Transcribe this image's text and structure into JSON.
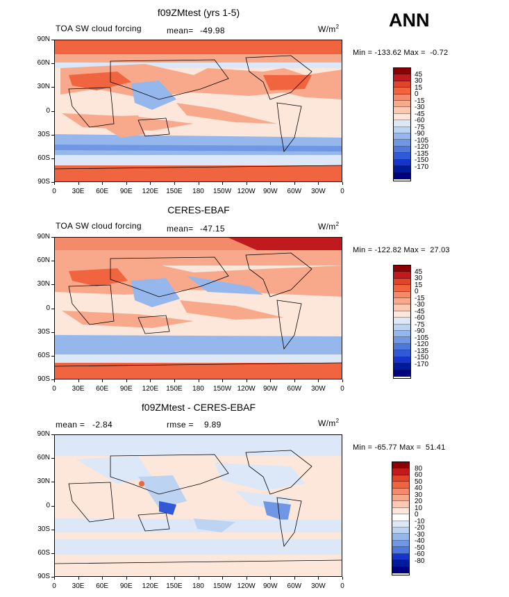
{
  "season": "ANN",
  "colorbar_colors_main": [
    "#8b0000",
    "#c0191e",
    "#e0452a",
    "#f06440",
    "#f58a6a",
    "#f8a98c",
    "#fbc9b4",
    "#fde6da",
    "#dce8f7",
    "#bcd3f2",
    "#95b7ec",
    "#6f97e3",
    "#4f78dc",
    "#3158d6",
    "#1535cc",
    "#001a9e",
    "#000080"
  ],
  "colorbar_colors_diff": [
    "#8b0000",
    "#c0191e",
    "#e0452a",
    "#f06440",
    "#f58a6a",
    "#f8a98c",
    "#fbc9b4",
    "#fde6da",
    "#ffffff",
    "#dce8f7",
    "#bcd3f2",
    "#95b7ec",
    "#6f97e3",
    "#4f78dc",
    "#1535cc",
    "#001a9e",
    "#000080"
  ],
  "lat_labels": [
    "90N",
    "60N",
    "30N",
    "0",
    "30S",
    "60S",
    "90S"
  ],
  "lon_labels": [
    "0",
    "30E",
    "60E",
    "90E",
    "120E",
    "150E",
    "180",
    "150W",
    "120W",
    "90W",
    "60W",
    "30W",
    "0"
  ],
  "panels": [
    {
      "title": "f09ZMtest (yrs 1-5)",
      "left_label": "TOA SW cloud forcing",
      "stat_label": "mean=",
      "stat_value": "-49.98",
      "units": "W/m",
      "units_exp": "2",
      "minmax": "Min = -133.62 Max =  -0.72",
      "colorbar_labels": [
        "45",
        "30",
        "15",
        "0",
        "-15",
        "-30",
        "-45",
        "-60",
        "-75",
        "-90",
        "-105",
        "-120",
        "-135",
        "-150",
        "-170"
      ]
    },
    {
      "title": "CERES-EBAF",
      "left_label": "TOA SW cloud forcing",
      "stat_label": "mean=",
      "stat_value": "-47.15",
      "units": "W/m",
      "units_exp": "2",
      "minmax": "Min = -122.82 Max =  27.03",
      "colorbar_labels": [
        "45",
        "30",
        "15",
        "0",
        "-15",
        "-30",
        "-45",
        "-60",
        "-75",
        "-90",
        "-105",
        "-120",
        "-135",
        "-150",
        "-170"
      ]
    },
    {
      "title": "f09ZMtest - CERES-EBAF",
      "left_label": "mean =   -2.84",
      "stat_label": "rmse =",
      "stat_value": "9.89",
      "units": "W/m",
      "units_exp": "2",
      "minmax": "Min = -65.77 Max =  51.41",
      "colorbar_labels": [
        "80",
        "60",
        "50",
        "40",
        "30",
        "20",
        "10",
        "0",
        "-10",
        "-20",
        "-30",
        "-40",
        "-50",
        "-60",
        "-80"
      ]
    }
  ]
}
